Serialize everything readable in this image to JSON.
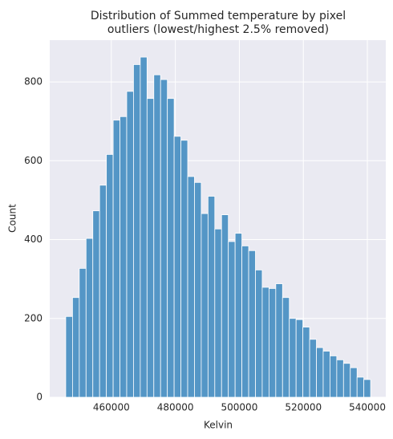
{
  "chart_data": {
    "type": "histogram",
    "title": [
      "Distribution of Summed temperature by pixel",
      "outliers (lowest/highest 2.5% removed)"
    ],
    "x_label": "Kelvin",
    "y_label": "Count",
    "bins": [
      445750,
      447867,
      449984,
      452101,
      454218,
      456335,
      458452,
      460569,
      462686,
      464803,
      466920,
      469037,
      471154,
      473271,
      475388,
      477505,
      479622,
      481739,
      483856,
      485973,
      488090,
      490207,
      492324,
      494441,
      496558,
      498675,
      500792,
      502909,
      505026,
      507143,
      509260,
      511377,
      513494,
      515611,
      517728,
      519845,
      521962,
      524079,
      526196,
      528313,
      530430,
      532547,
      534664,
      536781,
      538898,
      541015
    ],
    "values": [
      205,
      253,
      327,
      403,
      473,
      538,
      616,
      703,
      712,
      776,
      844,
      863,
      758,
      818,
      806,
      758,
      662,
      652,
      560,
      545,
      466,
      510,
      427,
      463,
      395,
      416,
      384,
      372,
      323,
      279,
      276,
      288,
      253,
      200,
      197,
      178,
      147,
      126,
      117,
      105,
      95,
      86,
      75,
      51,
      45
    ],
    "color": "#5496c6",
    "xlim": [
      440750,
      545750
    ],
    "xticks": [
      460000,
      480000,
      500000,
      520000,
      540000
    ],
    "ylim": [
      0,
      906
    ],
    "yticks": [
      0,
      200,
      400,
      600,
      800
    ],
    "grid": true
  }
}
